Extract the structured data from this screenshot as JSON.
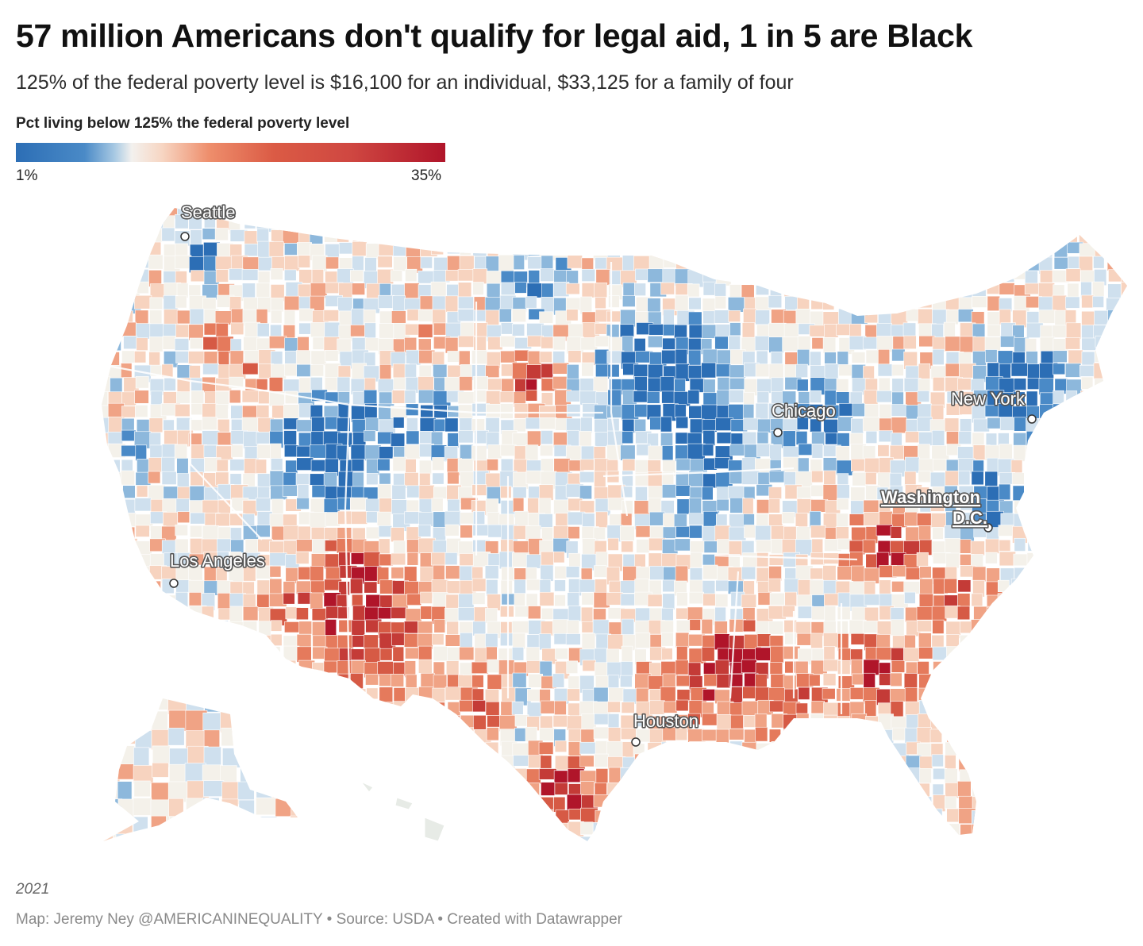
{
  "header": {
    "title": "57 million Americans don't qualify for legal aid, 1 in 5 are Black",
    "subtitle": "125% of the federal poverty level is $16,100 for an individual, $33,125 for a family of four"
  },
  "legend": {
    "title": "Pct living below 125% the federal poverty level",
    "min_label": "1%",
    "max_label": "35%",
    "scale_colors": [
      "#2c6eb5",
      "#a8c9e3",
      "#f3f1ee",
      "#ee8e6c",
      "#b0152a"
    ]
  },
  "map": {
    "type": "choropleth",
    "geography": "US counties",
    "cities": {
      "seattle": "Seattle",
      "los_angeles": "Los Angeles",
      "houston": "Houston",
      "chicago": "Chicago",
      "new_york": "New York",
      "washington_line1": "Washington",
      "washington_line2": "D.C."
    }
  },
  "footer": {
    "year": "2021",
    "credit": "Map: Jeremy Ney @AMERICANINEQUALITY • Source: USDA • Created with Datawrapper"
  }
}
